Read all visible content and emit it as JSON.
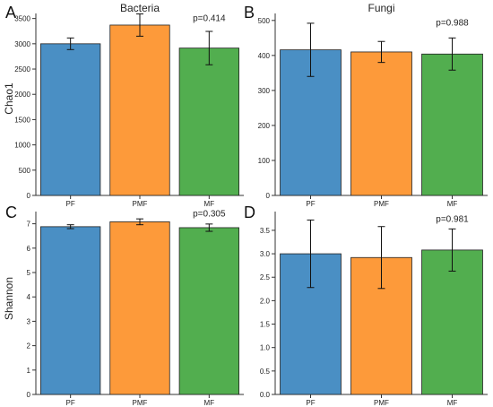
{
  "figure": {
    "ylabel_top": "Chao1",
    "ylabel_bottom": "Shannon"
  },
  "colors": {
    "PF": "#4a8fc4",
    "PMF": "#fd9a3a",
    "MF": "#52ae4f"
  },
  "chart_data": [
    {
      "panel": "A",
      "type": "bar",
      "title": "Bacteria",
      "categories": [
        "PF",
        "PMF",
        "MF"
      ],
      "values": [
        3000,
        3370,
        2915
      ],
      "errors": [
        115,
        220,
        330
      ],
      "ylim": [
        0,
        3600
      ],
      "yticks": [
        0,
        500,
        1000,
        1500,
        2000,
        2500,
        3000,
        3500
      ],
      "annotation": "p=0.414",
      "annotation_y": 3450
    },
    {
      "panel": "B",
      "type": "bar",
      "title": "Fungi",
      "categories": [
        "PF",
        "PMF",
        "MF"
      ],
      "values": [
        416,
        410,
        404
      ],
      "errors": [
        76,
        30,
        46
      ],
      "ylim": [
        0,
        520
      ],
      "yticks": [
        0,
        100,
        200,
        300,
        400,
        500
      ],
      "annotation": "p=0.988",
      "annotation_y": 485
    },
    {
      "panel": "C",
      "type": "bar",
      "title": "",
      "categories": [
        "PF",
        "PMF",
        "MF"
      ],
      "values": [
        6.88,
        7.08,
        6.84
      ],
      "errors": [
        0.08,
        0.12,
        0.15
      ],
      "ylim": [
        0,
        7.5
      ],
      "yticks": [
        0,
        1,
        2,
        3,
        4,
        5,
        6,
        7
      ],
      "annotation": "p=0.305",
      "annotation_y": 7.3
    },
    {
      "panel": "D",
      "type": "bar",
      "title": "",
      "categories": [
        "PF",
        "PMF",
        "MF"
      ],
      "values": [
        3.0,
        2.92,
        3.08
      ],
      "errors": [
        0.72,
        0.66,
        0.45
      ],
      "ylim": [
        0,
        3.9
      ],
      "yticks": [
        0,
        0.5,
        1.0,
        1.5,
        2.0,
        2.5,
        3.0,
        3.5
      ],
      "tick_format": "0.0",
      "annotation": "p=0.981",
      "annotation_y": 3.68
    }
  ]
}
